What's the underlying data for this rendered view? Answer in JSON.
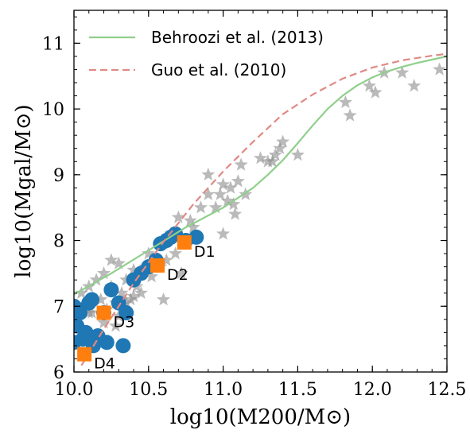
{
  "chart_data": {
    "type": "scatter",
    "xlabel": "log10(M200/M⊙)",
    "ylabel": "log10(Mgal/M⊙)",
    "xlim": [
      10.0,
      12.5
    ],
    "ylim": [
      6.0,
      11.5
    ],
    "xticks": [
      "10.0",
      "10.5",
      "11.0",
      "11.5",
      "12.0",
      "12.5"
    ],
    "yticks": [
      "6",
      "7",
      "8",
      "9",
      "10",
      "11"
    ],
    "grid": false,
    "legend_position": "top-left",
    "colors": {
      "behroozi": "#8fcf8b",
      "guo": "#e08a84",
      "stars": "#8c8c8c",
      "dots": "#1f77b4",
      "squares": "#ff7f0e"
    },
    "lines": [
      {
        "name": "Behroozi et al. (2013)",
        "style": "solid",
        "x": [
          10.0,
          10.25,
          10.5,
          10.75,
          11.0,
          11.1,
          11.2,
          11.3,
          11.4,
          11.5,
          11.6,
          11.7,
          11.8,
          11.9,
          12.0,
          12.1,
          12.2,
          12.3,
          12.4,
          12.5
        ],
        "y": [
          7.18,
          7.5,
          7.85,
          8.2,
          8.5,
          8.65,
          8.8,
          9.0,
          9.22,
          9.48,
          9.75,
          10.0,
          10.2,
          10.36,
          10.48,
          10.57,
          10.64,
          10.7,
          10.75,
          10.8
        ]
      },
      {
        "name": "Guo et al. (2010)",
        "style": "dashed",
        "x": [
          10.05,
          10.2,
          10.4,
          10.6,
          10.8,
          11.0,
          11.2,
          11.4,
          11.6,
          11.8,
          12.0,
          12.2,
          12.4,
          12.5
        ],
        "y": [
          6.1,
          6.65,
          7.35,
          7.98,
          8.55,
          9.05,
          9.5,
          9.92,
          10.22,
          10.46,
          10.63,
          10.74,
          10.81,
          10.84
        ]
      }
    ],
    "scatter_stars": {
      "marker": "star",
      "x": [
        10.02,
        10.05,
        10.08,
        10.1,
        10.12,
        10.15,
        10.18,
        10.2,
        10.22,
        10.25,
        10.28,
        10.3,
        10.32,
        10.35,
        10.38,
        10.4,
        10.42,
        10.45,
        10.48,
        10.5,
        10.52,
        10.55,
        10.58,
        10.6,
        10.62,
        10.65,
        10.68,
        10.7,
        10.72,
        10.75,
        10.78,
        10.8,
        10.85,
        10.9,
        10.95,
        10.98,
        11.0,
        11.03,
        11.05,
        11.08,
        11.1,
        11.12,
        11.15,
        11.25,
        11.3,
        11.35,
        11.38,
        11.4,
        11.5,
        11.82,
        11.85,
        11.98,
        12.02,
        12.08,
        12.2,
        12.28,
        12.45,
        10.05,
        10.1,
        10.15,
        10.2,
        10.3,
        10.35,
        10.4,
        10.25,
        10.6,
        10.45,
        10.28,
        10.7,
        10.9,
        11.07,
        11.0,
        11.33
      ],
      "y": [
        6.8,
        7.2,
        7.0,
        7.3,
        6.9,
        7.4,
        7.1,
        7.5,
        6.95,
        7.3,
        7.05,
        7.65,
        7.2,
        7.4,
        7.1,
        7.55,
        7.3,
        7.2,
        7.6,
        7.8,
        7.45,
        7.7,
        7.6,
        7.95,
        7.7,
        8.1,
        7.8,
        8.35,
        7.5,
        8.0,
        8.3,
        8.2,
        8.5,
        9.0,
        8.5,
        8.7,
        8.1,
        8.6,
        8.8,
        8.4,
        8.9,
        9.15,
        8.7,
        9.25,
        9.2,
        9.3,
        9.4,
        9.5,
        9.3,
        10.1,
        9.9,
        10.35,
        10.25,
        10.55,
        10.55,
        10.35,
        10.6,
        6.6,
        6.9,
        6.5,
        6.75,
        6.85,
        7.05,
        7.15,
        7.7,
        7.1,
        7.5,
        6.7,
        8.05,
        8.7,
        8.55,
        8.85,
        9.2
      ]
    },
    "scatter_dots": {
      "marker": "circle",
      "x": [
        10.0,
        10.02,
        10.04,
        10.06,
        10.08,
        10.1,
        10.13,
        10.16,
        10.2,
        10.25,
        10.3,
        10.35,
        10.4,
        10.45,
        10.5,
        10.55,
        10.58,
        10.62,
        10.65,
        10.68,
        10.75,
        10.82,
        10.0,
        10.03,
        10.12,
        10.22,
        10.33
      ],
      "y": [
        7.0,
        6.7,
        6.9,
        6.5,
        6.6,
        7.05,
        6.4,
        6.55,
        6.9,
        7.25,
        7.05,
        6.9,
        7.4,
        7.5,
        7.6,
        7.7,
        7.95,
        8.0,
        8.05,
        8.1,
        8.0,
        8.05,
        6.45,
        6.95,
        7.1,
        6.45,
        6.4
      ]
    },
    "scatter_squares": {
      "marker": "square",
      "points": [
        {
          "label": "D1",
          "x": 10.74,
          "y": 7.97
        },
        {
          "label": "D2",
          "x": 10.56,
          "y": 7.62
        },
        {
          "label": "D3",
          "x": 10.2,
          "y": 6.9
        },
        {
          "label": "D4",
          "x": 10.07,
          "y": 6.27
        }
      ]
    }
  }
}
